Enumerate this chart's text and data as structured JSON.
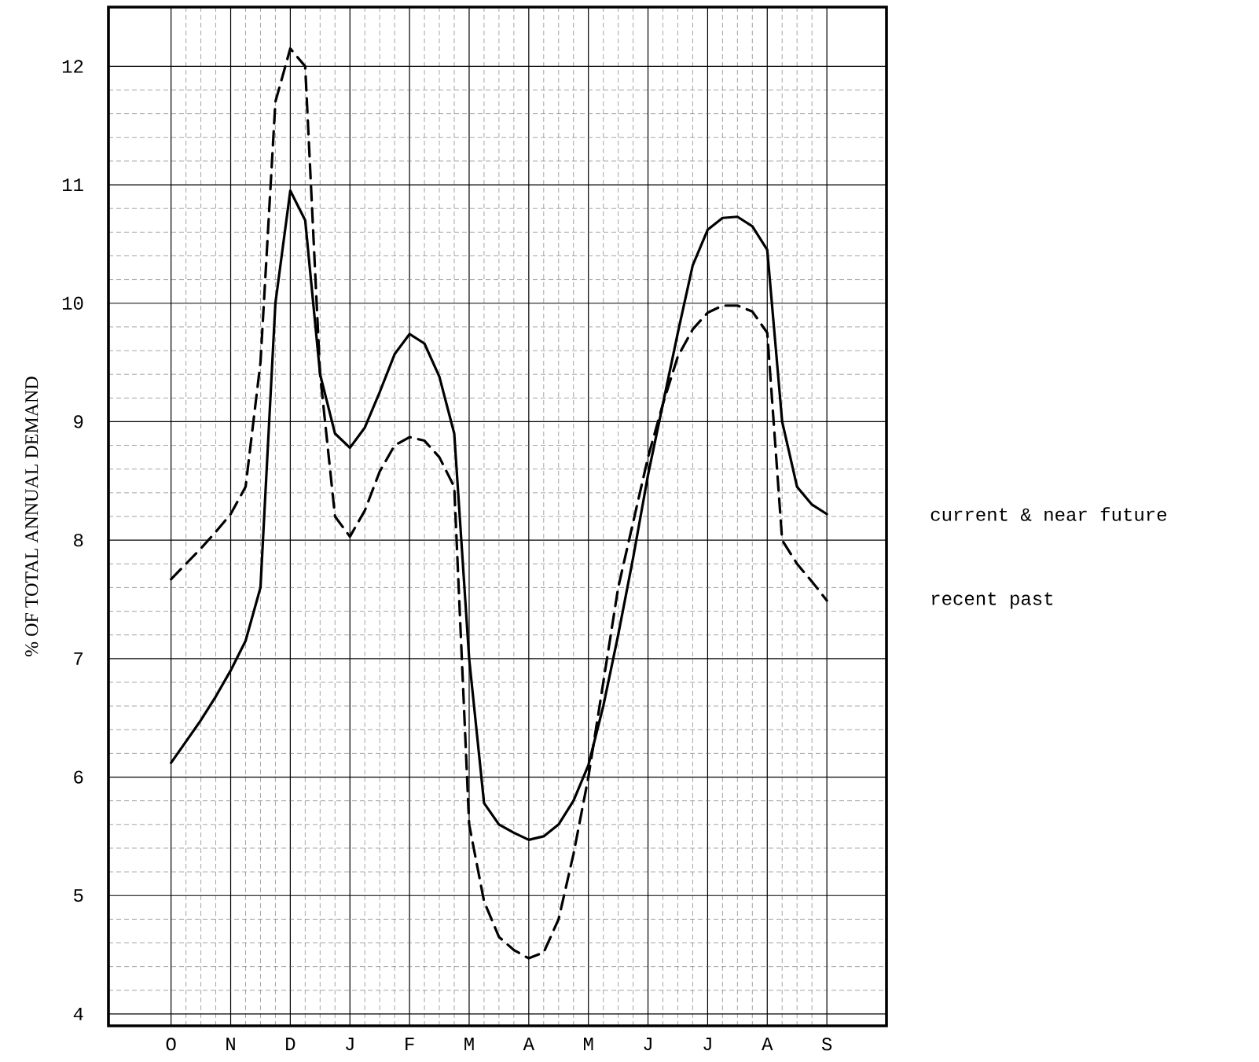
{
  "chart_data": {
    "type": "line",
    "ylabel": "% OF TOTAL ANNUAL DEMAND",
    "categories": [
      "O",
      null,
      null,
      null,
      "N",
      null,
      null,
      null,
      "D",
      null,
      null,
      null,
      "J",
      null,
      null,
      null,
      "F",
      null,
      null,
      null,
      "M",
      null,
      null,
      null,
      "A",
      null,
      null,
      null,
      "M",
      null,
      null,
      null,
      "J",
      null,
      null,
      null,
      "J",
      null,
      null,
      null,
      "A",
      null,
      null,
      null,
      "S"
    ],
    "ylim": [
      3.9,
      12.5
    ],
    "yticks": [
      4,
      5,
      6,
      7,
      8,
      9,
      10,
      11,
      12
    ],
    "grid": true,
    "series": [
      {
        "name": "current & near future",
        "color": "#000000",
        "line_style": "solid",
        "values": [
          6.12,
          6.3,
          6.48,
          6.68,
          6.9,
          7.15,
          7.6,
          10.0,
          10.95,
          10.7,
          9.4,
          8.9,
          8.78,
          8.95,
          9.25,
          9.57,
          9.74,
          9.66,
          9.38,
          8.9,
          7.0,
          5.78,
          5.6,
          5.53,
          5.47,
          5.5,
          5.6,
          5.8,
          6.1,
          6.6,
          7.2,
          7.85,
          8.55,
          9.15,
          9.75,
          10.32,
          10.62,
          10.72,
          10.73,
          10.65,
          10.45,
          9.0,
          8.45,
          8.3,
          8.22
        ]
      },
      {
        "name": "recent past",
        "color": "#000000",
        "line_style": "dashed",
        "values": [
          7.67,
          7.8,
          7.93,
          8.07,
          8.22,
          8.45,
          9.5,
          11.7,
          12.15,
          12.0,
          9.4,
          8.2,
          8.03,
          8.25,
          8.58,
          8.8,
          8.87,
          8.84,
          8.7,
          8.45,
          5.6,
          4.95,
          4.65,
          4.54,
          4.47,
          4.52,
          4.8,
          5.35,
          6.0,
          6.8,
          7.6,
          8.15,
          8.7,
          9.15,
          9.55,
          9.78,
          9.92,
          9.98,
          9.98,
          9.93,
          9.75,
          8.0,
          7.8,
          7.65,
          7.49
        ]
      }
    ]
  }
}
